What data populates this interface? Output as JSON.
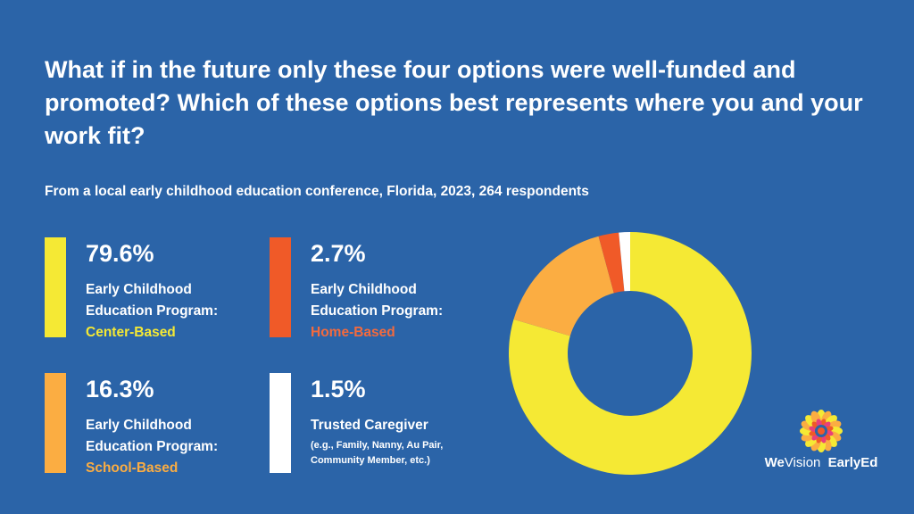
{
  "title": "What if in the future only these four options were well-funded and promoted? Which of these options best represents where you and your work fit?",
  "subtitle": "From a local early childhood education conference, Florida, 2023, 264 respondents",
  "legend": [
    {
      "percent": "79.6%",
      "line1": "Early Childhood",
      "line2": "Education Program:",
      "highlight": "Center-Based",
      "color": "#f5e934"
    },
    {
      "percent": "2.7%",
      "line1": "Early Childhood",
      "line2": "Education Program:",
      "highlight": "Home-Based",
      "color": "#f05a28"
    },
    {
      "percent": "16.3%",
      "line1": "Early Childhood",
      "line2": "Education Program:",
      "highlight": "School-Based",
      "color": "#fbad42"
    },
    {
      "percent": "1.5%",
      "line1": "Trusted Caregiver",
      "note1": "(e.g., Family, Nanny, Au Pair,",
      "note2": "Community Member, etc.)",
      "color": "#ffffff"
    }
  ],
  "chart_data": {
    "type": "pie",
    "donut": true,
    "categories": [
      "Early Childhood Education Program: Center-Based",
      "Early Childhood Education Program: School-Based",
      "Early Childhood Education Program: Home-Based",
      "Trusted Caregiver"
    ],
    "values": [
      79.6,
      16.3,
      2.7,
      1.5
    ],
    "colors": [
      "#f5e934",
      "#fbad42",
      "#f05a28",
      "#ffffff"
    ],
    "start": "top",
    "direction": "clockwise"
  },
  "logo": {
    "text_we": "We",
    "text_vision": "Vision",
    "text_early": "EarlyEd"
  }
}
